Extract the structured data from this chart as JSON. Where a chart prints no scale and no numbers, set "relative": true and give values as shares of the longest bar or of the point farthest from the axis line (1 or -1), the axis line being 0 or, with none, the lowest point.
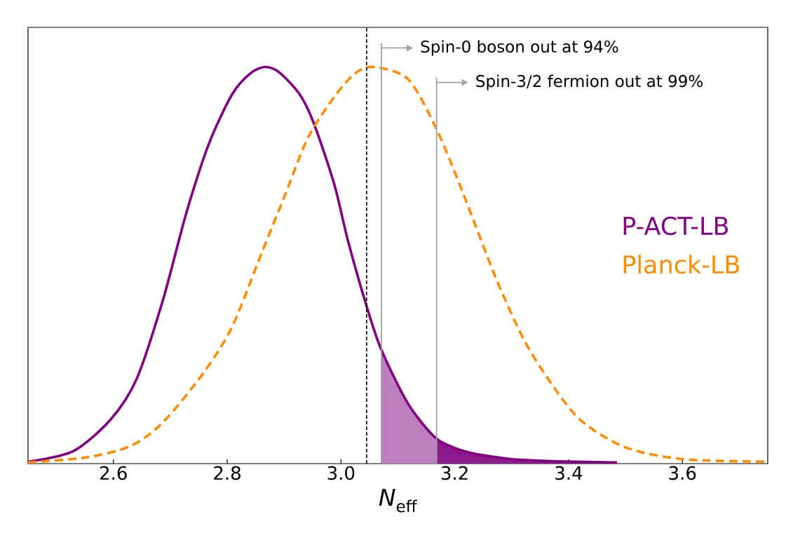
{
  "chart_data": {
    "type": "line",
    "xlabel": "*N*$_{eff}$",
    "relative": true,
    "xlim": [
      2.45,
      3.75
    ],
    "xticks": [
      2.6,
      2.8,
      {
        "value": 3.0,
        "label": "3.0"
      },
      3.2,
      3.4,
      3.6
    ],
    "legend": "right",
    "series": [
      {
        "name": "P-ACT-LB",
        "color": "#800080",
        "line_style": "solid",
        "x": [
          2.45,
          2.529,
          2.595,
          2.641,
          2.687,
          2.728,
          2.768,
          2.809,
          2.84,
          2.866,
          2.891,
          2.927,
          2.952,
          2.988,
          3.013,
          3.045,
          3.071,
          3.118,
          3.168,
          3.22,
          3.296,
          3.373,
          3.485
        ],
        "values": [
          0.005,
          0.031,
          0.111,
          0.214,
          0.412,
          0.631,
          0.807,
          0.932,
          0.983,
          1.0,
          0.987,
          0.932,
          0.859,
          0.705,
          0.558,
          0.397,
          0.287,
          0.151,
          0.063,
          0.03,
          0.012,
          0.006,
          0.003
        ]
      },
      {
        "name": "Planck-LB",
        "color": "#ff8c00",
        "line_style": "dashed",
        "x": [
          2.45,
          2.554,
          2.631,
          2.687,
          2.758,
          2.809,
          2.86,
          2.901,
          2.942,
          2.988,
          3.024,
          3.057,
          3.118,
          3.17,
          3.22,
          3.271,
          3.322,
          3.373,
          3.423,
          3.5,
          3.602,
          3.75
        ],
        "values": [
          0.003,
          0.016,
          0.045,
          0.104,
          0.228,
          0.346,
          0.529,
          0.675,
          0.822,
          0.924,
          0.983,
          1.0,
          0.969,
          0.837,
          0.662,
          0.472,
          0.311,
          0.195,
          0.107,
          0.041,
          0.011,
          0.005
        ]
      },
      {
        "type": "area",
        "color": "#bd7fbd",
        "x": [
          3.071,
          3.118,
          3.168
        ],
        "values": [
          0.287,
          0.151,
          0.063
        ]
      },
      {
        "type": "area",
        "color": "#8b1a8b",
        "x": [
          3.168,
          3.22,
          3.296,
          3.373,
          3.485
        ],
        "values": [
          0.063,
          0.03,
          0.012,
          0.006,
          0.003
        ]
      }
    ],
    "ref_lines": [
      {
        "axis": "x",
        "value": 3.045,
        "color": "#000000",
        "line_style": "dashed"
      },
      {
        "axis": "x",
        "value": 3.071,
        "color": "#a0a0a0",
        "line_style": "solid",
        "label": "Spin-0 boson out at 94%"
      },
      {
        "axis": "x",
        "value": 3.168,
        "color": "#a0a0a0",
        "line_style": "solid",
        "label": "Spin-3/2 fermion out at 99%"
      }
    ]
  }
}
